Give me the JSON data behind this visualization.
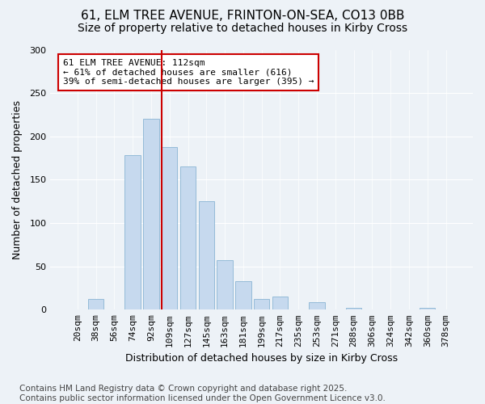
{
  "title_line1": "61, ELM TREE AVENUE, FRINTON-ON-SEA, CO13 0BB",
  "title_line2": "Size of property relative to detached houses in Kirby Cross",
  "xlabel": "Distribution of detached houses by size in Kirby Cross",
  "ylabel": "Number of detached properties",
  "bins": [
    "20sqm",
    "38sqm",
    "56sqm",
    "74sqm",
    "92sqm",
    "109sqm",
    "127sqm",
    "145sqm",
    "163sqm",
    "181sqm",
    "199sqm",
    "217sqm",
    "235sqm",
    "253sqm",
    "271sqm",
    "288sqm",
    "306sqm",
    "324sqm",
    "342sqm",
    "360sqm",
    "378sqm"
  ],
  "bar_values": [
    0,
    12,
    0,
    178,
    220,
    188,
    165,
    125,
    57,
    33,
    12,
    15,
    0,
    9,
    0,
    2,
    0,
    0,
    0,
    2,
    0
  ],
  "bar_color": "#c6d9ee",
  "bar_edge_color": "#8ab4d4",
  "property_bin_index": 5,
  "annotation_text": "61 ELM TREE AVENUE: 112sqm\n← 61% of detached houses are smaller (616)\n39% of semi-detached houses are larger (395) →",
  "vline_color": "#cc0000",
  "annotation_box_edge": "#cc0000",
  "annotation_box_face": "#ffffff",
  "ylim": [
    0,
    300
  ],
  "yticks": [
    0,
    50,
    100,
    150,
    200,
    250,
    300
  ],
  "footnote": "Contains HM Land Registry data © Crown copyright and database right 2025.\nContains public sector information licensed under the Open Government Licence v3.0.",
  "background_color": "#edf2f7",
  "plot_bg_color": "#edf2f7",
  "title_fontsize": 11,
  "subtitle_fontsize": 10,
  "axis_label_fontsize": 9,
  "tick_fontsize": 8,
  "annotation_fontsize": 8,
  "footnote_fontsize": 7.5
}
